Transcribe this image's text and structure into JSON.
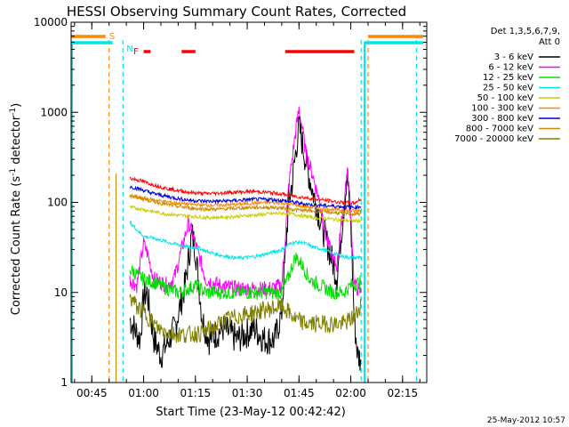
{
  "chart_data": {
    "type": "line",
    "title": "HESSI Observing Summary Count Rates, Corrected",
    "xlabel": "Start Time (23-May-12 00:42:42)",
    "ylabel": "Corrected Count Rate (s⁻¹ detector⁻¹)",
    "ylabel_main": "Corrected Count Rate (s",
    "ylabel_sup1": "-1",
    "ylabel_mid": " detector",
    "ylabel_sup2": "-1",
    "ylabel_end": ")",
    "yscale": "log",
    "ylim": [
      1,
      10000
    ],
    "xlim": [
      "00:39",
      "02:22"
    ],
    "x_ticks": [
      "00:45",
      "01:00",
      "01:15",
      "01:30",
      "01:45",
      "02:00",
      "02:15"
    ],
    "y_ticks": [
      "1",
      "10",
      "100",
      "1000",
      "10000"
    ],
    "legend_header": [
      "Det 1,3,5,6,7,9,",
      "Att 0"
    ],
    "legend_position": "right",
    "timestamp": "25-May-2012 10:57",
    "flag_labels": {
      "saa": "S",
      "night": "N",
      "flare": "F"
    },
    "flags": {
      "saa": [
        [
          "00:39",
          "00:49"
        ],
        [
          "02:05",
          "02:21"
        ]
      ],
      "night": [
        [
          "00:39",
          "00:51"
        ],
        [
          "02:04",
          "02:21"
        ]
      ],
      "flare": [
        [
          "01:00",
          "01:02"
        ],
        [
          "01:11",
          "01:15"
        ],
        [
          "01:41",
          "02:01"
        ]
      ]
    },
    "observation_window": [
      "00:52",
      "02:04"
    ],
    "guide_lines": [
      {
        "time": "00:50",
        "color": "#ff8800"
      },
      {
        "time": "00:54",
        "color": "#00e5e5"
      },
      {
        "time": "02:03",
        "color": "#00e5e5"
      },
      {
        "time": "02:05",
        "color": "#ff8800"
      },
      {
        "time": "02:19",
        "color": "#00e5e5"
      }
    ],
    "series": [
      {
        "name": "3 - 6 keV",
        "color": "#000000",
        "points": [
          [
            "00:56",
            5
          ],
          [
            "00:59",
            3
          ],
          [
            "01:00",
            9
          ],
          [
            "01:01",
            10
          ],
          [
            "01:03",
            3
          ],
          [
            "01:05",
            2
          ],
          [
            "01:09",
            4
          ],
          [
            "01:12",
            12
          ],
          [
            "01:14",
            45
          ],
          [
            "01:15",
            30
          ],
          [
            "01:17",
            5
          ],
          [
            "01:19",
            3
          ],
          [
            "01:23",
            4
          ],
          [
            "01:27",
            3
          ],
          [
            "01:32",
            4
          ],
          [
            "01:35",
            3
          ],
          [
            "01:38",
            3
          ],
          [
            "01:40",
            6
          ],
          [
            "01:42",
            100
          ],
          [
            "01:43",
            160
          ],
          [
            "01:44",
            350
          ],
          [
            "01:45",
            700
          ],
          [
            "01:46",
            450
          ],
          [
            "01:47",
            280
          ],
          [
            "01:49",
            130
          ],
          [
            "01:52",
            50
          ],
          [
            "01:55",
            20
          ],
          [
            "01:56",
            15
          ],
          [
            "01:58",
            90
          ],
          [
            "01:59",
            180
          ],
          [
            "02:00",
            60
          ],
          [
            "02:01",
            5
          ],
          [
            "02:02",
            2
          ],
          [
            "02:03",
            1.8
          ]
        ]
      },
      {
        "name": "6 - 12 keV",
        "color": "#ff00ff",
        "points": [
          [
            "00:56",
            14
          ],
          [
            "00:58",
            12
          ],
          [
            "01:00",
            35
          ],
          [
            "01:01",
            28
          ],
          [
            "01:03",
            14
          ],
          [
            "01:07",
            12
          ],
          [
            "01:09",
            15
          ],
          [
            "01:11",
            30
          ],
          [
            "01:13",
            60
          ],
          [
            "01:15",
            35
          ],
          [
            "01:18",
            14
          ],
          [
            "01:22",
            12
          ],
          [
            "01:27",
            11
          ],
          [
            "01:33",
            11
          ],
          [
            "01:37",
            11
          ],
          [
            "01:40",
            12
          ],
          [
            "01:41",
            40
          ],
          [
            "01:42",
            150
          ],
          [
            "01:43",
            300
          ],
          [
            "01:44",
            600
          ],
          [
            "01:45",
            1100
          ],
          [
            "01:46",
            650
          ],
          [
            "01:47",
            350
          ],
          [
            "01:49",
            200
          ],
          [
            "01:51",
            100
          ],
          [
            "01:53",
            40
          ],
          [
            "01:55",
            22
          ],
          [
            "01:56",
            20
          ],
          [
            "01:58",
            100
          ],
          [
            "01:59",
            230
          ],
          [
            "02:00",
            80
          ],
          [
            "02:01",
            12
          ],
          [
            "02:03",
            10
          ]
        ]
      },
      {
        "name": "12 - 25 keV",
        "color": "#00dd00",
        "points": [
          [
            "00:56",
            18
          ],
          [
            "00:58",
            16
          ],
          [
            "01:00",
            14
          ],
          [
            "01:03",
            13
          ],
          [
            "01:07",
            11
          ],
          [
            "01:10",
            10
          ],
          [
            "01:13",
            11
          ],
          [
            "01:15",
            12
          ],
          [
            "01:18",
            10
          ],
          [
            "01:24",
            10
          ],
          [
            "01:30",
            10
          ],
          [
            "01:36",
            10
          ],
          [
            "01:40",
            10
          ],
          [
            "01:42",
            15
          ],
          [
            "01:44",
            25
          ],
          [
            "01:46",
            20
          ],
          [
            "01:48",
            14
          ],
          [
            "01:51",
            12
          ],
          [
            "01:55",
            10
          ],
          [
            "01:58",
            10
          ],
          [
            "02:00",
            12
          ],
          [
            "02:03",
            13
          ]
        ]
      },
      {
        "name": "25 - 50 keV",
        "color": "#00e5e5",
        "points": [
          [
            "00:56",
            60
          ],
          [
            "00:58",
            50
          ],
          [
            "01:00",
            42
          ],
          [
            "01:03",
            40
          ],
          [
            "01:07",
            36
          ],
          [
            "01:10",
            34
          ],
          [
            "01:13",
            32
          ],
          [
            "01:16",
            31
          ],
          [
            "01:19",
            28
          ],
          [
            "01:22",
            26
          ],
          [
            "01:27",
            24
          ],
          [
            "01:32",
            25
          ],
          [
            "01:36",
            27
          ],
          [
            "01:40",
            30
          ],
          [
            "01:43",
            36
          ],
          [
            "01:46",
            36
          ],
          [
            "01:49",
            32
          ],
          [
            "01:52",
            30
          ],
          [
            "01:55",
            27
          ],
          [
            "01:58",
            25
          ],
          [
            "02:01",
            24
          ],
          [
            "02:03",
            25
          ]
        ]
      },
      {
        "name": "50 - 100 keV",
        "color": "#cccc00",
        "points": [
          [
            "00:56",
            88
          ],
          [
            "00:59",
            85
          ],
          [
            "01:02",
            80
          ],
          [
            "01:06",
            75
          ],
          [
            "01:10",
            72
          ],
          [
            "01:14",
            70
          ],
          [
            "01:18",
            68
          ],
          [
            "01:22",
            68
          ],
          [
            "01:27",
            70
          ],
          [
            "01:32",
            72
          ],
          [
            "01:37",
            75
          ],
          [
            "01:41",
            76
          ],
          [
            "01:45",
            72
          ],
          [
            "01:49",
            68
          ],
          [
            "01:53",
            66
          ],
          [
            "01:57",
            64
          ],
          [
            "02:01",
            62
          ],
          [
            "02:03",
            63
          ]
        ]
      },
      {
        "name": "100 - 300 keV",
        "color": "#ff8800",
        "points": [
          [
            "00:56",
            115
          ],
          [
            "00:59",
            112
          ],
          [
            "01:02",
            108
          ],
          [
            "01:06",
            102
          ],
          [
            "01:10",
            98
          ],
          [
            "01:14",
            95
          ],
          [
            "01:18",
            93
          ],
          [
            "01:22",
            93
          ],
          [
            "01:27",
            95
          ],
          [
            "01:32",
            98
          ],
          [
            "01:37",
            100
          ],
          [
            "01:41",
            98
          ],
          [
            "01:45",
            92
          ],
          [
            "01:49",
            88
          ],
          [
            "01:53",
            85
          ],
          [
            "01:57",
            82
          ],
          [
            "02:01",
            80
          ],
          [
            "02:03",
            82
          ]
        ]
      },
      {
        "name": "300 - 800 keV",
        "color": "#0000dd",
        "points": [
          [
            "00:56",
            150
          ],
          [
            "00:59",
            140
          ],
          [
            "01:02",
            128
          ],
          [
            "01:06",
            118
          ],
          [
            "01:10",
            110
          ],
          [
            "01:14",
            105
          ],
          [
            "01:18",
            103
          ],
          [
            "01:22",
            103
          ],
          [
            "01:27",
            105
          ],
          [
            "01:32",
            108
          ],
          [
            "01:37",
            108
          ],
          [
            "01:41",
            104
          ],
          [
            "01:45",
            98
          ],
          [
            "01:49",
            94
          ],
          [
            "01:53",
            92
          ],
          [
            "01:57",
            90
          ],
          [
            "02:01",
            88
          ],
          [
            "02:03",
            90
          ]
        ]
      },
      {
        "name": "800 - 7000 keV",
        "color": "#cc8800",
        "points": [
          [
            "00:56",
            120
          ],
          [
            "00:59",
            112
          ],
          [
            "01:02",
            104
          ],
          [
            "01:06",
            96
          ],
          [
            "01:10",
            90
          ],
          [
            "01:14",
            86
          ],
          [
            "01:18",
            84
          ],
          [
            "01:22",
            84
          ],
          [
            "01:27",
            86
          ],
          [
            "01:32",
            88
          ],
          [
            "01:37",
            88
          ],
          [
            "01:41",
            86
          ],
          [
            "01:45",
            82
          ],
          [
            "01:49",
            80
          ],
          [
            "01:53",
            78
          ],
          [
            "01:57",
            76
          ],
          [
            "02:01",
            74
          ],
          [
            "02:03",
            75
          ]
        ]
      },
      {
        "name": "7000 - 20000 keV",
        "color": "#808000",
        "points": [
          [
            "00:56",
            9
          ],
          [
            "00:58",
            7
          ],
          [
            "01:00",
            6
          ],
          [
            "01:02",
            5
          ],
          [
            "01:04",
            4
          ],
          [
            "01:08",
            3.5
          ],
          [
            "01:12",
            3.4
          ],
          [
            "01:16",
            3.5
          ],
          [
            "01:20",
            4
          ],
          [
            "01:24",
            5
          ],
          [
            "01:28",
            5.5
          ],
          [
            "01:32",
            6
          ],
          [
            "01:36",
            6.5
          ],
          [
            "01:40",
            7
          ],
          [
            "01:42",
            6
          ],
          [
            "01:44",
            5
          ],
          [
            "01:47",
            4.5
          ],
          [
            "01:51",
            4.5
          ],
          [
            "01:55",
            4.5
          ],
          [
            "01:58",
            4.5
          ],
          [
            "02:00",
            5
          ],
          [
            "02:02",
            6
          ],
          [
            "02:03",
            8
          ]
        ]
      },
      {
        "name": "flare",
        "color": "#ff0000",
        "legend": false,
        "points": [
          [
            "00:56",
            185
          ],
          [
            "00:59",
            175
          ],
          [
            "01:02",
            160
          ],
          [
            "01:06",
            145
          ],
          [
            "01:10",
            135
          ],
          [
            "01:14",
            128
          ],
          [
            "01:18",
            125
          ],
          [
            "01:22",
            127
          ],
          [
            "01:27",
            130
          ],
          [
            "01:32",
            132
          ],
          [
            "01:37",
            128
          ],
          [
            "01:41",
            122
          ],
          [
            "01:45",
            115
          ],
          [
            "01:49",
            110
          ],
          [
            "01:53",
            105
          ],
          [
            "01:57",
            100
          ],
          [
            "02:01",
            98
          ],
          [
            "02:03",
            110
          ]
        ]
      }
    ]
  }
}
